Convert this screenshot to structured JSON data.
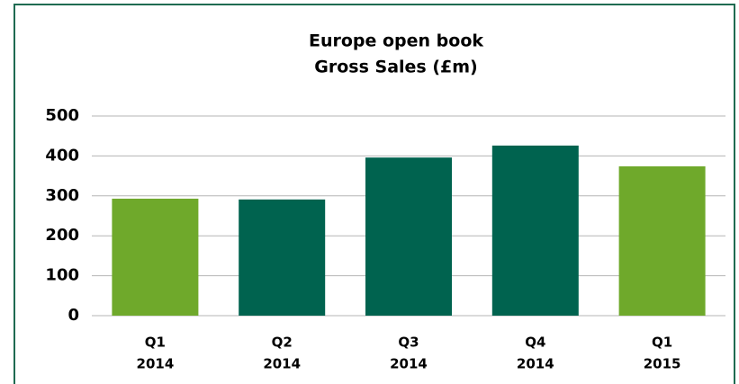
{
  "chart_data": {
    "type": "bar",
    "title": [
      "Europe open book",
      "Gross Sales (£m)"
    ],
    "categories": [
      [
        "Q1",
        "2014"
      ],
      [
        "Q2",
        "2014"
      ],
      [
        "Q3",
        "2014"
      ],
      [
        "Q4",
        "2014"
      ],
      [
        "Q1",
        "2015"
      ]
    ],
    "values": [
      293,
      291,
      396,
      426,
      374
    ],
    "colors": [
      "#6fa92b",
      "#00634f",
      "#00634f",
      "#00634f",
      "#6fa92b"
    ],
    "ylim": [
      0,
      500
    ],
    "yticks": [
      0,
      100,
      200,
      300,
      400,
      500
    ],
    "grid": true
  }
}
